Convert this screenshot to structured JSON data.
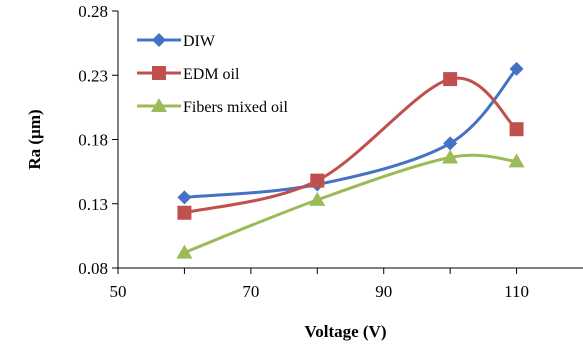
{
  "chart_data": {
    "type": "line",
    "title": "",
    "xlabel": "Voltage (V)",
    "ylabel": "Ra (µm)",
    "xlim": [
      50,
      120
    ],
    "ylim": [
      0.08,
      0.28
    ],
    "x_ticks": [
      "50",
      "70",
      "90",
      "110"
    ],
    "x_tick_values": [
      50,
      70,
      90,
      110
    ],
    "y_ticks": [
      "0.08",
      "0.13",
      "0.18",
      "0.23",
      "0.28"
    ],
    "y_tick_values": [
      0.08,
      0.13,
      0.18,
      0.23,
      0.28
    ],
    "legend_position": "top-left",
    "grid": false,
    "series": [
      {
        "name": "DIW",
        "color": "#4472C4",
        "marker": "diamond",
        "x": [
          60,
          80,
          100,
          110
        ],
        "y": [
          0.135,
          0.145,
          0.177,
          0.235
        ]
      },
      {
        "name": "EDM oil",
        "color": "#C0504D",
        "marker": "square",
        "x": [
          60,
          80,
          100,
          110
        ],
        "y": [
          0.123,
          0.148,
          0.227,
          0.188
        ]
      },
      {
        "name": "Fibers mixed oil",
        "color": "#9BBB59",
        "marker": "triangle",
        "x": [
          60,
          80,
          100,
          110
        ],
        "y": [
          0.092,
          0.133,
          0.166,
          0.163
        ]
      }
    ]
  }
}
